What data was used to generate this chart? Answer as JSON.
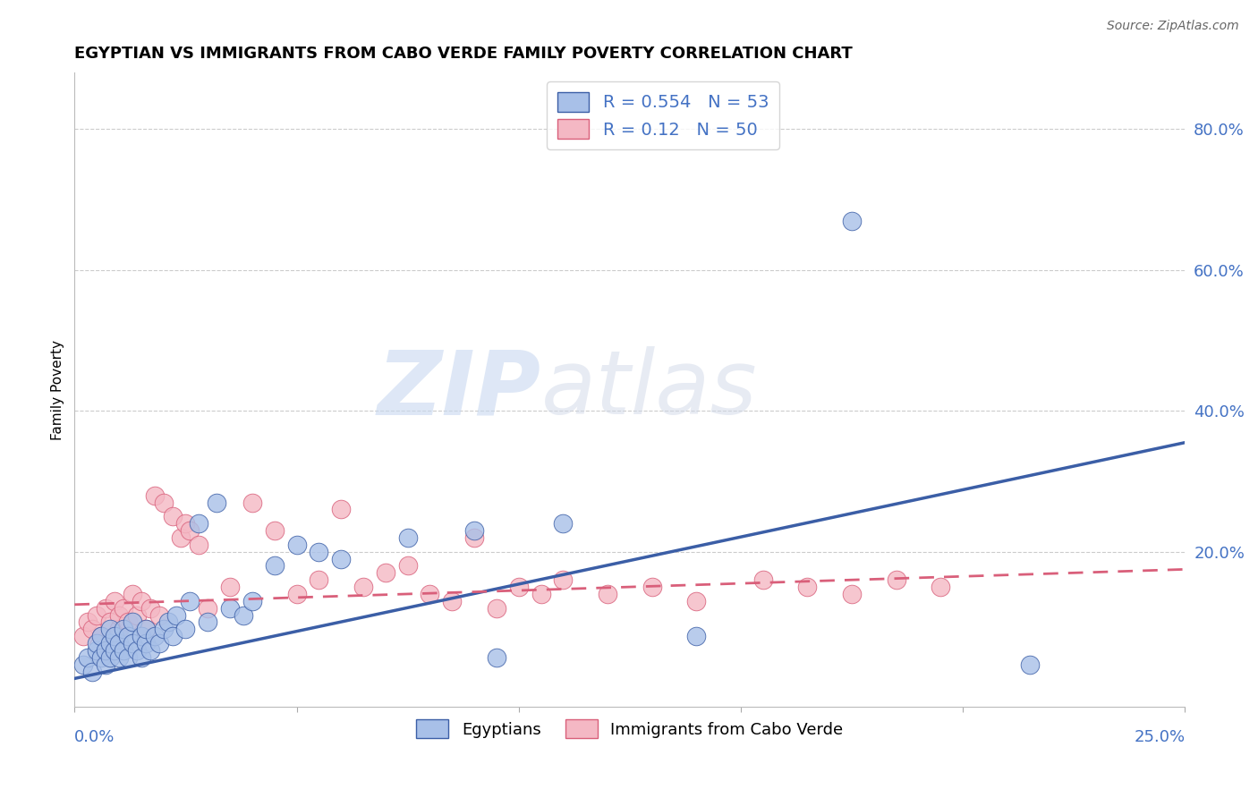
{
  "title": "EGYPTIAN VS IMMIGRANTS FROM CABO VERDE FAMILY POVERTY CORRELATION CHART",
  "source": "Source: ZipAtlas.com",
  "ylabel": "Family Poverty",
  "r_blue": 0.554,
  "n_blue": 53,
  "r_pink": 0.12,
  "n_pink": 50,
  "ytick_labels": [
    "80.0%",
    "60.0%",
    "40.0%",
    "20.0%"
  ],
  "ytick_values": [
    0.8,
    0.6,
    0.4,
    0.2
  ],
  "xlim": [
    0.0,
    0.25
  ],
  "ylim": [
    -0.02,
    0.88
  ],
  "blue_fill": "#A8C0E8",
  "pink_fill": "#F4B8C4",
  "trend_blue": "#3B5EA6",
  "trend_pink": "#D95F7A",
  "text_blue": "#4472C4",
  "legend_label_blue": "Egyptians",
  "legend_label_pink": "Immigrants from Cabo Verde",
  "watermark_zip": "ZIP",
  "watermark_atlas": "atlas",
  "blue_scatter_x": [
    0.002,
    0.003,
    0.004,
    0.005,
    0.005,
    0.006,
    0.006,
    0.007,
    0.007,
    0.008,
    0.008,
    0.008,
    0.009,
    0.009,
    0.01,
    0.01,
    0.011,
    0.011,
    0.012,
    0.012,
    0.013,
    0.013,
    0.014,
    0.015,
    0.015,
    0.016,
    0.016,
    0.017,
    0.018,
    0.019,
    0.02,
    0.021,
    0.022,
    0.023,
    0.025,
    0.026,
    0.028,
    0.03,
    0.032,
    0.035,
    0.038,
    0.04,
    0.045,
    0.05,
    0.055,
    0.06,
    0.075,
    0.09,
    0.095,
    0.11,
    0.14,
    0.175,
    0.215
  ],
  "blue_scatter_y": [
    0.04,
    0.05,
    0.03,
    0.06,
    0.07,
    0.05,
    0.08,
    0.04,
    0.06,
    0.05,
    0.07,
    0.09,
    0.06,
    0.08,
    0.05,
    0.07,
    0.06,
    0.09,
    0.05,
    0.08,
    0.07,
    0.1,
    0.06,
    0.05,
    0.08,
    0.07,
    0.09,
    0.06,
    0.08,
    0.07,
    0.09,
    0.1,
    0.08,
    0.11,
    0.09,
    0.13,
    0.24,
    0.1,
    0.27,
    0.12,
    0.11,
    0.13,
    0.18,
    0.21,
    0.2,
    0.19,
    0.22,
    0.23,
    0.05,
    0.24,
    0.08,
    0.67,
    0.04
  ],
  "pink_scatter_x": [
    0.002,
    0.003,
    0.004,
    0.005,
    0.006,
    0.007,
    0.008,
    0.009,
    0.01,
    0.01,
    0.011,
    0.012,
    0.013,
    0.014,
    0.015,
    0.016,
    0.017,
    0.018,
    0.019,
    0.02,
    0.022,
    0.024,
    0.025,
    0.026,
    0.028,
    0.03,
    0.035,
    0.04,
    0.045,
    0.05,
    0.055,
    0.06,
    0.065,
    0.07,
    0.075,
    0.08,
    0.085,
    0.09,
    0.095,
    0.1,
    0.105,
    0.11,
    0.12,
    0.13,
    0.14,
    0.155,
    0.165,
    0.175,
    0.185,
    0.195
  ],
  "pink_scatter_y": [
    0.08,
    0.1,
    0.09,
    0.11,
    0.08,
    0.12,
    0.1,
    0.13,
    0.09,
    0.11,
    0.12,
    0.1,
    0.14,
    0.11,
    0.13,
    0.09,
    0.12,
    0.28,
    0.11,
    0.27,
    0.25,
    0.22,
    0.24,
    0.23,
    0.21,
    0.12,
    0.15,
    0.27,
    0.23,
    0.14,
    0.16,
    0.26,
    0.15,
    0.17,
    0.18,
    0.14,
    0.13,
    0.22,
    0.12,
    0.15,
    0.14,
    0.16,
    0.14,
    0.15,
    0.13,
    0.16,
    0.15,
    0.14,
    0.16,
    0.15
  ],
  "blue_trend_x0": 0.0,
  "blue_trend_y0": 0.02,
  "blue_trend_x1": 0.25,
  "blue_trend_y1": 0.355,
  "pink_trend_x0": 0.0,
  "pink_trend_y0": 0.125,
  "pink_trend_x1": 0.25,
  "pink_trend_y1": 0.175
}
